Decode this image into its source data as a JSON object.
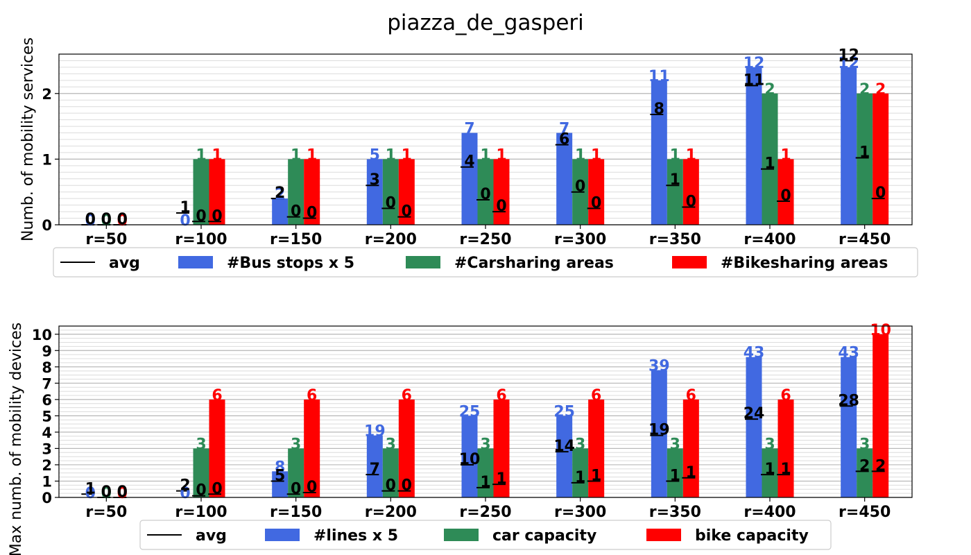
{
  "title": "piazza_de_gasperi",
  "colors": {
    "bus": "#4169e1",
    "car": "#2e8b57",
    "bike": "#ff0000",
    "avg": "#000000",
    "grid_major": "#b8b8b8",
    "grid_minor": "#dcdcdc"
  },
  "chart_data": [
    {
      "type": "bar",
      "ylabel": "Numb. of mobility services",
      "categories": [
        "r=50",
        "r=100",
        "r=150",
        "r=200",
        "r=250",
        "r=300",
        "r=350",
        "r=400",
        "r=450"
      ],
      "ylim": [
        0,
        2.6
      ],
      "yticks": [
        "0",
        "1",
        "2"
      ],
      "grid": true,
      "legend_position": "bottom",
      "series": [
        {
          "name": "#Bus stops x 5",
          "values": [
            0,
            0,
            0.4,
            1.0,
            1.4,
            1.4,
            2.2,
            2.4,
            2.4
          ],
          "labels": [
            "0",
            "0",
            "2",
            "5",
            "7",
            "7",
            "11",
            "12",
            "12"
          ]
        },
        {
          "name": "#Carsharing areas",
          "values": [
            0,
            1,
            1,
            1,
            1,
            1,
            1,
            2,
            2
          ],
          "labels": [
            "0",
            "1",
            "1",
            "1",
            "1",
            "1",
            "1",
            "2",
            "2"
          ]
        },
        {
          "name": "#Bikesharing areas",
          "values": [
            0,
            1,
            1,
            1,
            1,
            1,
            1,
            1,
            2
          ],
          "labels": [
            "0",
            "1",
            "1",
            "1",
            "1",
            "1",
            "1",
            "1",
            "2"
          ]
        }
      ],
      "avg_name": "avg",
      "avg": {
        "bus": [
          0,
          0.18,
          0.4,
          0.6,
          0.88,
          1.22,
          1.68,
          2.12,
          2.5
        ],
        "car": [
          0,
          0.05,
          0.12,
          0.25,
          0.38,
          0.5,
          0.6,
          0.85,
          1.02
        ],
        "bike": [
          0,
          0.05,
          0.1,
          0.12,
          0.2,
          0.25,
          0.27,
          0.36,
          0.4
        ],
        "bus_labels": [
          "0",
          "1",
          "2",
          "3",
          "4",
          "6",
          "8",
          "11",
          "12"
        ],
        "car_labels": [
          "0",
          "0",
          "0",
          "0",
          "0",
          "0",
          "1",
          "1",
          "1"
        ],
        "bike_labels": [
          "0",
          "0",
          "0",
          "0",
          "0",
          "0",
          "0",
          "0",
          "0"
        ]
      }
    },
    {
      "type": "bar",
      "ylabel": "Max numb. of mobility devices",
      "categories": [
        "r=50",
        "r=100",
        "r=150",
        "r=200",
        "r=250",
        "r=300",
        "r=350",
        "r=400",
        "r=450"
      ],
      "ylim": [
        0,
        10.5
      ],
      "yticks": [
        "0",
        "1",
        "2",
        "3",
        "4",
        "5",
        "6",
        "7",
        "8",
        "9",
        "10"
      ],
      "grid": true,
      "legend_position": "bottom",
      "series": [
        {
          "name": "#lines x 5",
          "values": [
            0,
            0,
            1.6,
            3.8,
            5.0,
            5.0,
            7.8,
            8.6,
            8.6
          ],
          "labels": [
            "0",
            "0",
            "8",
            "19",
            "25",
            "25",
            "39",
            "43",
            "43"
          ]
        },
        {
          "name": "car capacity",
          "values": [
            0,
            3,
            3,
            3,
            3,
            3,
            3,
            3,
            3
          ],
          "labels": [
            "0",
            "3",
            "3",
            "3",
            "3",
            "3",
            "3",
            "3",
            "3"
          ]
        },
        {
          "name": "bike capacity",
          "values": [
            0,
            6,
            6,
            6,
            6,
            6,
            6,
            6,
            10
          ],
          "labels": [
            "0",
            "6",
            "6",
            "6",
            "6",
            "6",
            "6",
            "6",
            "10"
          ]
        }
      ],
      "avg_name": "avg",
      "avg": {
        "bus": [
          0.2,
          0.4,
          1.0,
          1.4,
          2.0,
          2.8,
          3.8,
          4.8,
          5.6
        ],
        "car": [
          0,
          0.1,
          0.2,
          0.4,
          0.6,
          0.9,
          1.0,
          1.4,
          1.6
        ],
        "bike": [
          0,
          0.2,
          0.3,
          0.4,
          0.8,
          1.0,
          1.2,
          1.4,
          1.6
        ],
        "bus_labels": [
          "1",
          "2",
          "5",
          "7",
          "10",
          "14",
          "19",
          "24",
          "28"
        ],
        "car_labels": [
          "0",
          "0",
          "0",
          "0",
          "1",
          "1",
          "1",
          "1",
          "2"
        ],
        "bike_labels": [
          "0",
          "0",
          "0",
          "0",
          "1",
          "1",
          "1",
          "1",
          "2"
        ]
      }
    }
  ]
}
